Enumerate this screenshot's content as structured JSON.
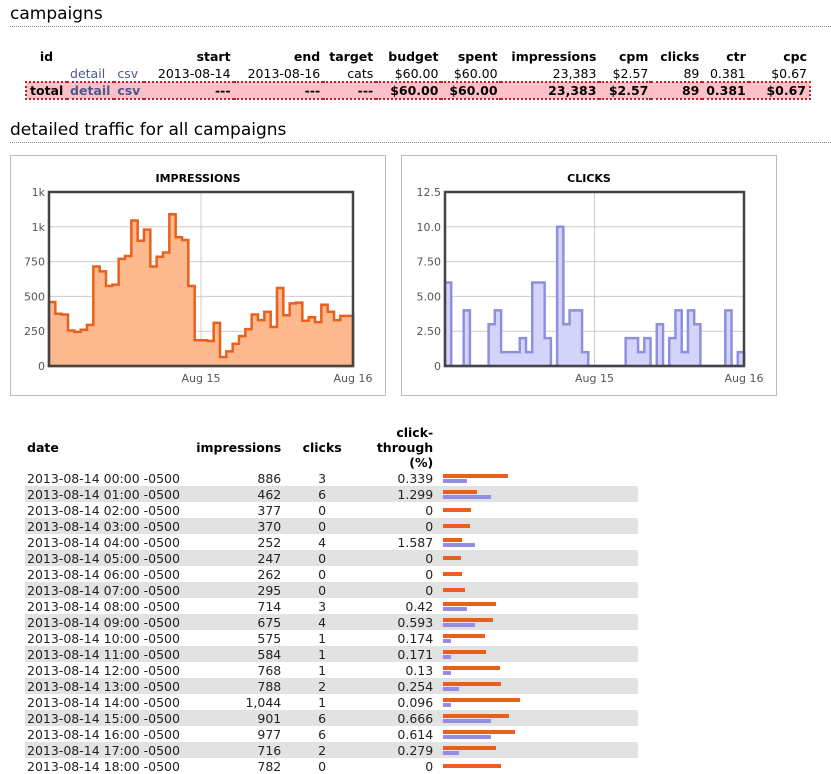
{
  "headings": {
    "campaigns": "campaigns",
    "traffic": "detailed traffic for all campaigns"
  },
  "campaigns": {
    "columns": [
      "id",
      "",
      "",
      "start",
      "end",
      "target",
      "budget",
      "spent",
      "impressions",
      "cpm",
      "clicks",
      "ctr",
      "cpc"
    ],
    "rows": [
      {
        "id": "",
        "detail": "detail",
        "csv": "csv",
        "start": "2013-08-14",
        "end": "2013-08-16",
        "target": "cats",
        "budget": "$60.00",
        "spent": "$60.00",
        "impressions": "23,383",
        "cpm": "$2.57",
        "clicks": "89",
        "ctr": "0.381",
        "cpc": "$0.67"
      }
    ],
    "total": {
      "id": "total",
      "detail": "detail",
      "csv": "csv",
      "start": "---",
      "end": "---",
      "target": "---",
      "budget": "$60.00",
      "spent": "$60.00",
      "impressions": "23,383",
      "cpm": "$2.57",
      "clicks": "89",
      "ctr": "0.381",
      "cpc": "$0.67"
    }
  },
  "colors": {
    "impressions": "#e8601c",
    "impressions_fill": "#fdb88e",
    "clicks": "#8f8fe0",
    "clicks_fill": "#d4d4fa",
    "total_bg": "#fdc0c8"
  },
  "chart_data": [
    {
      "type": "area",
      "title": "IMPRESSIONS",
      "x_ticks": [
        "Aug 15",
        "Aug 16"
      ],
      "y_ticks": [
        "0",
        "250",
        "500",
        "750",
        "1k",
        "1k"
      ],
      "ylim": [
        0,
        1250
      ],
      "grid": true,
      "step": true,
      "values": [
        460,
        375,
        370,
        255,
        245,
        260,
        295,
        715,
        680,
        575,
        585,
        770,
        790,
        1045,
        900,
        980,
        715,
        785,
        815,
        1090,
        925,
        905,
        575,
        185,
        185,
        180,
        310,
        65,
        105,
        160,
        215,
        265,
        370,
        330,
        390,
        280,
        560,
        365,
        450,
        455,
        325,
        350,
        315,
        440,
        390,
        330,
        360,
        360
      ]
    },
    {
      "type": "area",
      "title": "CLICKS",
      "x_ticks": [
        "Aug 15",
        "Aug 16"
      ],
      "y_ticks": [
        "0",
        "2.50",
        "5.00",
        "7.50",
        "10.0",
        "12.5"
      ],
      "ylim": [
        0,
        12.5
      ],
      "grid": true,
      "step": true,
      "values": [
        6,
        0,
        0,
        4,
        0,
        0,
        0,
        3,
        4,
        1,
        1,
        1,
        2,
        1,
        6,
        6,
        2,
        0,
        10,
        3,
        4,
        4,
        1,
        0,
        0,
        0,
        0,
        0,
        0,
        2,
        2,
        1,
        2,
        0,
        3,
        0,
        2,
        4,
        1,
        4,
        3,
        0,
        0,
        0,
        0,
        4,
        0,
        1
      ]
    }
  ],
  "traffic": {
    "columns": [
      "date",
      "impressions",
      "clicks",
      "click-through (%)"
    ],
    "rows": [
      [
        "2013-08-14 00:00 -0500",
        "886",
        "3",
        "0.339"
      ],
      [
        "2013-08-14 01:00 -0500",
        "462",
        "6",
        "1.299"
      ],
      [
        "2013-08-14 02:00 -0500",
        "377",
        "0",
        "0"
      ],
      [
        "2013-08-14 03:00 -0500",
        "370",
        "0",
        "0"
      ],
      [
        "2013-08-14 04:00 -0500",
        "252",
        "4",
        "1.587"
      ],
      [
        "2013-08-14 05:00 -0500",
        "247",
        "0",
        "0"
      ],
      [
        "2013-08-14 06:00 -0500",
        "262",
        "0",
        "0"
      ],
      [
        "2013-08-14 07:00 -0500",
        "295",
        "0",
        "0"
      ],
      [
        "2013-08-14 08:00 -0500",
        "714",
        "3",
        "0.42"
      ],
      [
        "2013-08-14 09:00 -0500",
        "675",
        "4",
        "0.593"
      ],
      [
        "2013-08-14 10:00 -0500",
        "575",
        "1",
        "0.174"
      ],
      [
        "2013-08-14 11:00 -0500",
        "584",
        "1",
        "0.171"
      ],
      [
        "2013-08-14 12:00 -0500",
        "768",
        "1",
        "0.13"
      ],
      [
        "2013-08-14 13:00 -0500",
        "788",
        "2",
        "0.254"
      ],
      [
        "2013-08-14 14:00 -0500",
        "1,044",
        "1",
        "0.096"
      ],
      [
        "2013-08-14 15:00 -0500",
        "901",
        "6",
        "0.666"
      ],
      [
        "2013-08-14 16:00 -0500",
        "977",
        "6",
        "0.614"
      ],
      [
        "2013-08-14 17:00 -0500",
        "716",
        "2",
        "0.279"
      ],
      [
        "2013-08-14 18:00 -0500",
        "782",
        "0",
        "0"
      ]
    ]
  }
}
